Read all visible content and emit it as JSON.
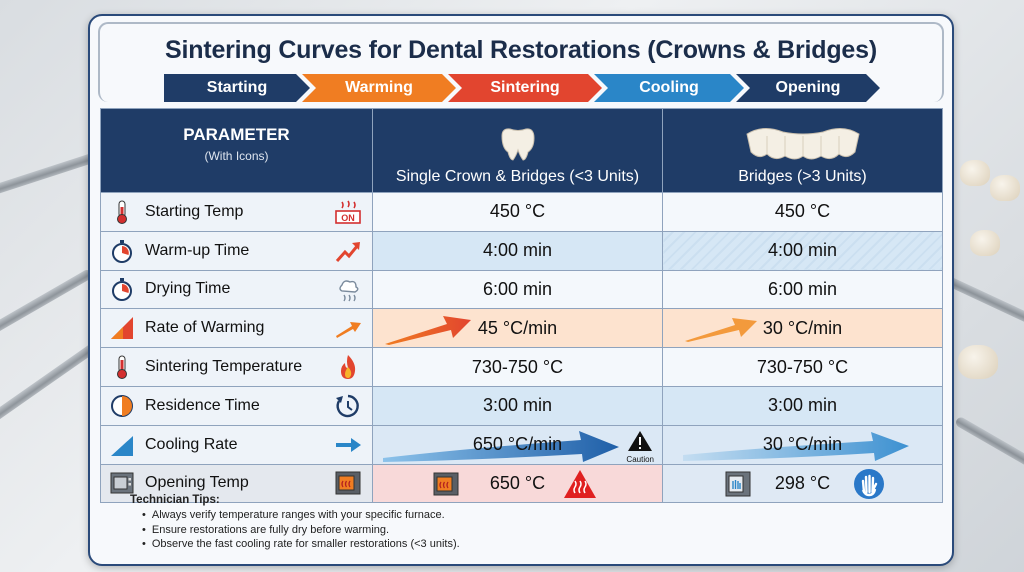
{
  "title": "Sintering Curves for Dental Restorations (Crowns & Bridges)",
  "stages": [
    {
      "label": "Starting",
      "color": "#1f3c67"
    },
    {
      "label": "Warming",
      "color": "#f07d22"
    },
    {
      "label": "Sintering",
      "color": "#e2452f"
    },
    {
      "label": "Cooling",
      "color": "#2a86c8"
    },
    {
      "label": "Opening",
      "color": "#1f3c67"
    }
  ],
  "table": {
    "param_header": "PARAMETER",
    "param_subheader": "(With Icons)",
    "col1_header": "Single Crown & Bridges (<3 Units)",
    "col2_header": "Bridges (>3 Units)",
    "rows": [
      {
        "param": "Starting Temp",
        "left_icon": "thermometer-icon",
        "right_icon": "heater-on-icon",
        "right_icon_text": "ON",
        "col1": "450 °C",
        "col2": "450 °C"
      },
      {
        "param": "Warm-up Time",
        "left_icon": "stopwatch-icon",
        "right_icon": "trend-up-arrow-icon",
        "col1": "4:00 min",
        "col2": "4:00 min"
      },
      {
        "param": "Drying Time",
        "left_icon": "stopwatch-icon",
        "right_icon": "steam-icon",
        "col1": "6:00 min",
        "col2": "6:00 min"
      },
      {
        "param": "Rate of Warming",
        "left_icon": "ramp-triangle-icon",
        "right_icon": "orange-arrow-icon",
        "col1": "45 °C/min",
        "col2": "30 °C/min"
      },
      {
        "param": "Sintering Temperature",
        "left_icon": "thermometer-icon",
        "right_icon": "flame-icon",
        "col1": "730-750 °C",
        "col2": "730-750 °C"
      },
      {
        "param": "Residence Time",
        "left_icon": "timer-pie-icon",
        "right_icon": "clock-icon",
        "col1": "3:00 min",
        "col2": "3:00 min"
      },
      {
        "param": "Cooling Rate",
        "left_icon": "cooling-ramp-icon",
        "right_icon": "blue-arrow-icon",
        "col1": "650 °C/min",
        "col2": "30 °C/min",
        "col1_badge": "Caution"
      },
      {
        "param": "Opening Temp",
        "left_icon": "furnace-icon",
        "right_icon": "furnace-hot-icon",
        "col1": "650 °C",
        "col2": "298 °C"
      }
    ]
  },
  "tips": {
    "title": "Technician Tips:",
    "items": [
      "Always verify temperature ranges with your specific furnace.",
      "Ensure restorations are fully dry before warming.",
      "Observe the fast cooling rate for smaller restorations (<3 units)."
    ]
  }
}
